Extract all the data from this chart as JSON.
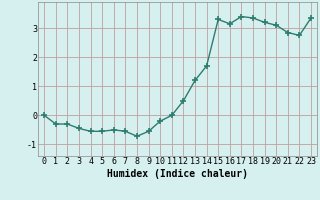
{
  "x": [
    0,
    1,
    2,
    3,
    4,
    5,
    6,
    7,
    8,
    9,
    10,
    11,
    12,
    13,
    14,
    15,
    16,
    17,
    18,
    19,
    20,
    21,
    22,
    23
  ],
  "y": [
    0.0,
    -0.3,
    -0.3,
    -0.45,
    -0.55,
    -0.55,
    -0.5,
    -0.55,
    -0.72,
    -0.55,
    -0.2,
    0.0,
    0.5,
    1.2,
    1.7,
    3.3,
    3.15,
    3.4,
    3.35,
    3.2,
    3.1,
    2.85,
    2.75,
    3.35
  ],
  "line_color": "#2d7d6f",
  "marker": "+",
  "markersize": 4,
  "markeredgewidth": 1.2,
  "linewidth": 1.0,
  "bg_color": "#d6efef",
  "grid_color": "#c0a0a0",
  "xlabel": "Humidex (Indice chaleur)",
  "xlabel_fontsize": 7,
  "tick_fontsize": 6,
  "xlim": [
    -0.5,
    23.5
  ],
  "ylim": [
    -1.4,
    3.9
  ],
  "yticks": [
    -1,
    0,
    1,
    2,
    3
  ],
  "xticks": [
    0,
    1,
    2,
    3,
    4,
    5,
    6,
    7,
    8,
    9,
    10,
    11,
    12,
    13,
    14,
    15,
    16,
    17,
    18,
    19,
    20,
    21,
    22,
    23
  ]
}
